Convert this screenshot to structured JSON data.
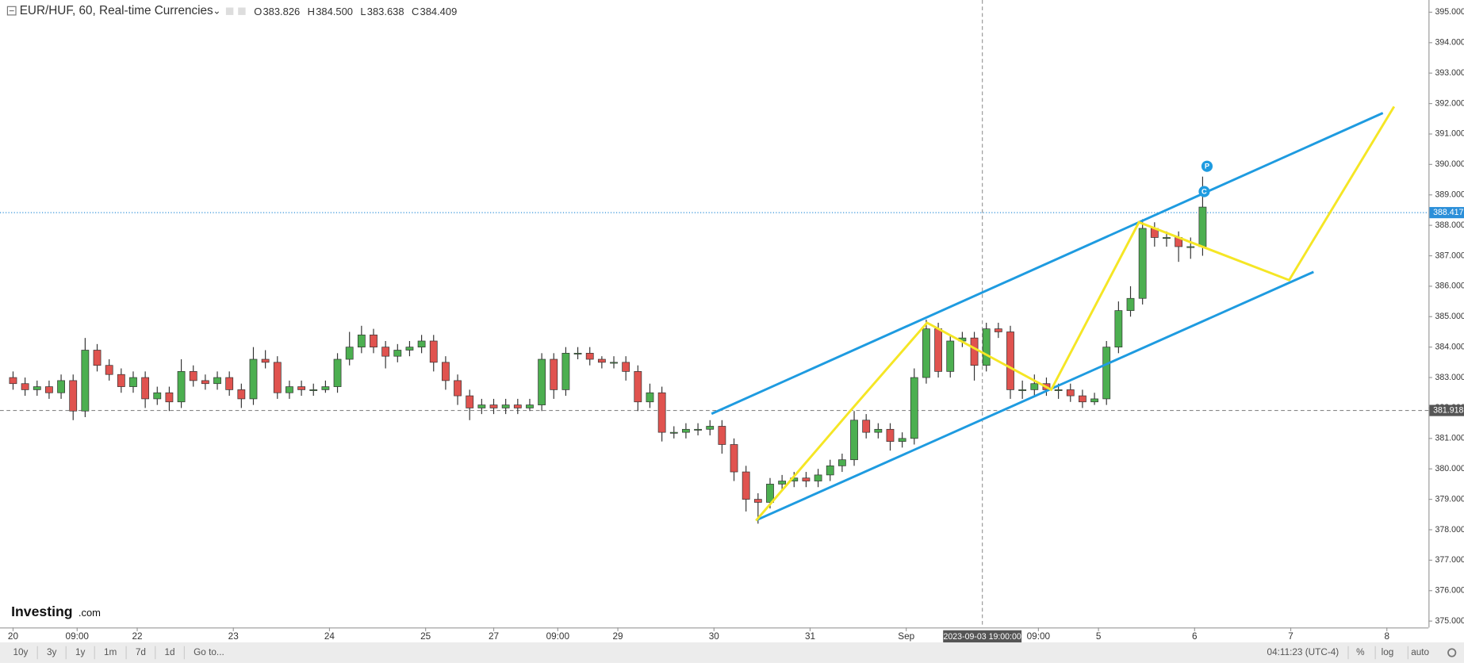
{
  "header": {
    "title": "EUR/HUF, 60, Real-time Currencies",
    "ohlc": [
      {
        "key": "O",
        "value": "383.826"
      },
      {
        "key": "H",
        "value": "384.500"
      },
      {
        "key": "L",
        "value": "383.638"
      },
      {
        "key": "C",
        "value": "384.409"
      }
    ]
  },
  "logo": {
    "brand": "Investing",
    "suffix": ".com"
  },
  "toolbar": {
    "buttons": [
      "10y",
      "3y",
      "1y",
      "1m",
      "7d",
      "1d",
      "Go to..."
    ],
    "clock": "04:11:23 (UTC-4)",
    "options": [
      "%",
      "log",
      "auto"
    ]
  },
  "chart_data": {
    "type": "candlestick",
    "up_color": "#4caf50",
    "down_color": "#e0534f",
    "xlim": [
      -3.26,
      353.4
    ],
    "ylim": [
      374.79,
      395.4
    ],
    "xticks": [
      {
        "value": 0,
        "label": "20"
      },
      {
        "value": 16,
        "label": "09:00"
      },
      {
        "value": 31,
        "label": "22"
      },
      {
        "value": 55,
        "label": "23"
      },
      {
        "value": 79,
        "label": "24"
      },
      {
        "value": 103,
        "label": "25"
      },
      {
        "value": 120,
        "label": "27"
      },
      {
        "value": 136,
        "label": "09:00"
      },
      {
        "value": 151,
        "label": "29"
      },
      {
        "value": 175,
        "label": "30"
      },
      {
        "value": 199,
        "label": "31"
      },
      {
        "value": 223,
        "label": "Sep"
      },
      {
        "value": 256,
        "label": "09:00"
      },
      {
        "value": 271,
        "label": "5"
      },
      {
        "value": 295,
        "label": "6"
      },
      {
        "value": 319,
        "label": "7"
      },
      {
        "value": 343,
        "label": "8"
      }
    ],
    "yticks": [
      {
        "value": 375,
        "label": "375.000"
      },
      {
        "value": 376,
        "label": "376.000"
      },
      {
        "value": 377,
        "label": "377.000"
      },
      {
        "value": 378,
        "label": "378.000"
      },
      {
        "value": 379,
        "label": "379.000"
      },
      {
        "value": 380,
        "label": "380.000"
      },
      {
        "value": 381,
        "label": "381.000"
      },
      {
        "value": 382,
        "label": "382.000"
      },
      {
        "value": 383,
        "label": "383.000"
      },
      {
        "value": 384,
        "label": "384.000"
      },
      {
        "value": 385,
        "label": "385.000"
      },
      {
        "value": 386,
        "label": "386.000"
      },
      {
        "value": 387,
        "label": "387.000"
      },
      {
        "value": 388,
        "label": "388.000"
      },
      {
        "value": 389,
        "label": "389.000"
      },
      {
        "value": 390,
        "label": "390.000"
      },
      {
        "value": 391,
        "label": "391.000"
      },
      {
        "value": 392,
        "label": "392.000"
      },
      {
        "value": 393,
        "label": "393.000"
      },
      {
        "value": 394,
        "label": "394.000"
      },
      {
        "value": 395,
        "label": "395.000"
      }
    ],
    "x": [
      0,
      3,
      6,
      9,
      12,
      15,
      18,
      21,
      24,
      27,
      30,
      33,
      36,
      39,
      42,
      45,
      48,
      51,
      54,
      57,
      60,
      63,
      66,
      69,
      72,
      75,
      78,
      81,
      84,
      87,
      90,
      93,
      96,
      99,
      102,
      105,
      108,
      111,
      114,
      117,
      120,
      123,
      126,
      129,
      132,
      135,
      138,
      141,
      144,
      147,
      150,
      153,
      156,
      159,
      162,
      165,
      168,
      171,
      174,
      177,
      180,
      183,
      186,
      189,
      192,
      195,
      198,
      201,
      204,
      207,
      210,
      213,
      216,
      219,
      222,
      225,
      228,
      231,
      234,
      237,
      240,
      243,
      246,
      249,
      252,
      255,
      258,
      261,
      264,
      267,
      270,
      273,
      276,
      279,
      282,
      285,
      288,
      291,
      294,
      297
    ],
    "open": [
      383.0,
      382.8,
      382.6,
      382.7,
      382.5,
      382.9,
      381.9,
      383.9,
      383.4,
      383.1,
      382.7,
      383.0,
      382.3,
      382.5,
      382.2,
      383.2,
      382.9,
      382.8,
      383.0,
      382.6,
      382.3,
      383.6,
      383.5,
      382.5,
      382.7,
      382.6,
      382.6,
      382.7,
      383.6,
      384.0,
      384.4,
      384.0,
      383.7,
      383.9,
      384.0,
      384.2,
      383.5,
      382.9,
      382.4,
      382.0,
      382.1,
      382.0,
      382.1,
      382.0,
      382.1,
      383.6,
      382.6,
      383.8,
      383.8,
      383.6,
      383.5,
      383.5,
      383.2,
      382.2,
      382.5,
      381.2,
      381.2,
      381.3,
      381.3,
      381.4,
      380.8,
      379.9,
      379.0,
      378.9,
      379.5,
      379.6,
      379.7,
      379.6,
      379.8,
      380.1,
      380.3,
      381.6,
      381.2,
      381.3,
      380.9,
      381.0,
      383.0,
      384.6,
      383.2,
      384.2,
      384.3,
      383.4,
      384.6,
      384.5,
      382.6,
      382.6,
      382.8,
      382.6,
      382.6,
      382.4,
      382.2,
      382.3,
      384.0,
      385.2,
      385.6,
      387.9,
      387.6,
      387.6,
      387.3,
      387.3
    ],
    "high": [
      383.2,
      383.0,
      382.9,
      382.9,
      383.1,
      383.1,
      384.3,
      384.1,
      383.6,
      383.3,
      383.2,
      383.2,
      382.7,
      382.7,
      383.6,
      383.4,
      383.1,
      383.2,
      383.2,
      382.8,
      384.0,
      383.9,
      383.7,
      382.9,
      382.9,
      382.8,
      382.9,
      383.8,
      384.5,
      384.7,
      384.6,
      384.2,
      384.1,
      384.2,
      384.4,
      384.4,
      383.7,
      383.1,
      382.6,
      382.3,
      382.3,
      382.3,
      382.3,
      382.3,
      383.8,
      383.8,
      384.0,
      384.0,
      384.0,
      383.7,
      383.7,
      383.7,
      383.4,
      382.8,
      382.7,
      381.4,
      381.5,
      381.5,
      381.6,
      381.6,
      381.0,
      380.1,
      379.2,
      379.7,
      379.8,
      379.9,
      379.9,
      380.0,
      380.3,
      380.5,
      381.9,
      381.8,
      381.5,
      381.5,
      381.2,
      383.3,
      384.9,
      384.8,
      384.4,
      384.5,
      384.5,
      384.8,
      384.8,
      384.7,
      382.9,
      383.1,
      383.0,
      382.8,
      382.8,
      382.6,
      382.5,
      384.2,
      385.5,
      386.0,
      388.2,
      388.1,
      387.8,
      387.8,
      387.6,
      389.6
    ],
    "low": [
      382.6,
      382.4,
      382.4,
      382.3,
      382.3,
      381.6,
      381.7,
      383.2,
      382.9,
      382.5,
      382.5,
      382.0,
      382.1,
      381.9,
      382.0,
      382.7,
      382.6,
      382.6,
      382.4,
      382.0,
      382.1,
      383.3,
      382.3,
      382.3,
      382.4,
      382.4,
      382.5,
      382.5,
      383.4,
      383.8,
      383.8,
      383.3,
      383.5,
      383.7,
      383.8,
      383.2,
      382.6,
      382.1,
      381.6,
      381.8,
      381.8,
      381.8,
      381.8,
      381.9,
      381.9,
      382.3,
      382.4,
      383.6,
      383.4,
      383.3,
      383.3,
      382.9,
      381.9,
      382.0,
      380.9,
      381.0,
      381.0,
      381.1,
      381.1,
      380.5,
      379.6,
      378.6,
      378.2,
      378.7,
      379.3,
      379.4,
      379.4,
      379.4,
      379.6,
      379.9,
      380.1,
      381.0,
      381.0,
      380.6,
      380.7,
      380.8,
      382.8,
      383.0,
      383.0,
      384.0,
      382.9,
      383.2,
      384.3,
      382.3,
      382.3,
      382.4,
      382.4,
      382.3,
      382.2,
      382.0,
      382.1,
      382.1,
      383.8,
      385.0,
      385.4,
      387.3,
      387.3,
      386.8,
      386.9,
      387.0
    ],
    "close": [
      382.8,
      382.6,
      382.7,
      382.5,
      382.9,
      381.9,
      383.9,
      383.4,
      383.1,
      382.7,
      383.0,
      382.3,
      382.5,
      382.2,
      383.2,
      382.9,
      382.8,
      383.0,
      382.6,
      382.3,
      383.6,
      383.5,
      382.5,
      382.7,
      382.6,
      382.6,
      382.7,
      383.6,
      384.0,
      384.4,
      384.0,
      383.7,
      383.9,
      384.0,
      384.2,
      383.5,
      382.9,
      382.4,
      382.0,
      382.1,
      382.0,
      382.1,
      382.0,
      382.1,
      383.6,
      382.6,
      383.8,
      383.8,
      383.6,
      383.5,
      383.5,
      383.2,
      382.2,
      382.5,
      381.2,
      381.2,
      381.3,
      381.3,
      381.4,
      380.8,
      379.9,
      379.0,
      378.9,
      379.5,
      379.6,
      379.7,
      379.6,
      379.8,
      380.1,
      380.3,
      381.6,
      381.2,
      381.3,
      380.9,
      381.0,
      383.0,
      384.6,
      383.2,
      384.2,
      384.3,
      383.4,
      384.6,
      384.5,
      382.6,
      382.6,
      382.8,
      382.6,
      382.6,
      382.4,
      382.2,
      382.3,
      384.0,
      385.2,
      385.6,
      387.9,
      387.6,
      387.6,
      387.3,
      387.3,
      388.6
    ],
    "drawings": [
      {
        "color": "#1e9be0",
        "x": [
          174.4,
          342
        ],
        "y": [
          381.81,
          391.69
        ]
      },
      {
        "color": "#1e9be0",
        "x": [
          185.5,
          324.7
        ],
        "y": [
          378.31,
          386.47
        ]
      },
      {
        "color": "#f5e625",
        "x": [
          185.5,
          209,
          228.2,
          259.2,
          281.1,
          318.6,
          344.8
        ],
        "y": [
          378.3,
          381.9,
          384.8,
          382.6,
          388.1,
          386.2,
          391.9
        ]
      }
    ],
    "price_lines": [
      {
        "value": 381.918,
        "color": "#888888",
        "label_bg": "#555555"
      },
      {
        "value": 388.417,
        "color": "#2b8fd9",
        "label_bg": "#2b8fd9"
      }
    ],
    "crosshair": {
      "x": 242,
      "label": "2023-09-03 19:00:00"
    },
    "markers": [
      {
        "x": 298.1,
        "y": 389.94,
        "label": "P"
      },
      {
        "x": 297.4,
        "y": 389.11,
        "label": "C"
      }
    ]
  }
}
